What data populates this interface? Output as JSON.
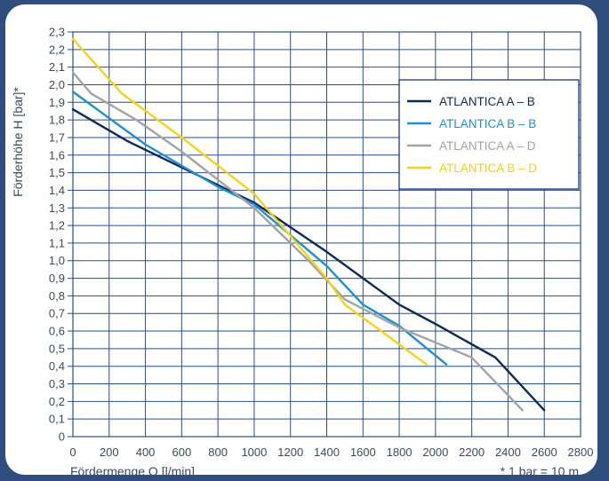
{
  "chart_data": {
    "type": "line",
    "xlabel": "Fördermenge Q [l/min]",
    "ylabel": "Förderhöhe H [bar]*",
    "footnote": "* 1 bar = 10 m",
    "xlim": [
      0,
      2800
    ],
    "ylim": [
      0,
      2.3
    ],
    "x_ticks": [
      "0",
      "200",
      "400",
      "600",
      "800",
      "1000",
      "1200",
      "1400",
      "1600",
      "1800",
      "2000",
      "2200",
      "2400",
      "2600",
      "2800"
    ],
    "y_ticks": [
      "0",
      "0,1",
      "0,2",
      "0,3",
      "0,4",
      "0,5",
      "0,6",
      "0,7",
      "0,8",
      "0,9",
      "1,0",
      "1,1",
      "1,2",
      "1,3",
      "1,4",
      "1,5",
      "1,6",
      "1,7",
      "1,8",
      "1,9",
      "2,0",
      "2,1",
      "2,2",
      "2,3"
    ],
    "grid": true,
    "legend_position": "top-right",
    "series": [
      {
        "name": "ATLANTICA A – B",
        "color": "#0e2a57",
        "points": [
          [
            0,
            1.86
          ],
          [
            300,
            1.68
          ],
          [
            700,
            1.48
          ],
          [
            1000,
            1.33
          ],
          [
            1400,
            1.05
          ],
          [
            1800,
            0.75
          ],
          [
            2000,
            0.64
          ],
          [
            2330,
            0.45
          ],
          [
            2600,
            0.15
          ]
        ]
      },
      {
        "name": "ATLANTICA B – B",
        "color": "#2190d0",
        "points": [
          [
            0,
            1.96
          ],
          [
            400,
            1.66
          ],
          [
            800,
            1.42
          ],
          [
            1000,
            1.32
          ],
          [
            1400,
            0.97
          ],
          [
            1600,
            0.75
          ],
          [
            1800,
            0.63
          ],
          [
            2060,
            0.41
          ]
        ]
      },
      {
        "name": "ATLANTICA A – D",
        "color": "#a3a3a3",
        "points": [
          [
            0,
            2.07
          ],
          [
            100,
            1.95
          ],
          [
            350,
            1.8
          ],
          [
            600,
            1.62
          ],
          [
            900,
            1.38
          ],
          [
            1000,
            1.3
          ],
          [
            1300,
            1.0
          ],
          [
            1500,
            0.78
          ],
          [
            1800,
            0.62
          ],
          [
            2200,
            0.45
          ],
          [
            2480,
            0.15
          ]
        ]
      },
      {
        "name": "ATLANTICA B – D",
        "color": "#f7d21a",
        "points": [
          [
            0,
            2.26
          ],
          [
            270,
            1.95
          ],
          [
            600,
            1.7
          ],
          [
            1000,
            1.38
          ],
          [
            1400,
            0.9
          ],
          [
            1500,
            0.75
          ],
          [
            1700,
            0.6
          ],
          [
            1950,
            0.41
          ]
        ]
      }
    ]
  }
}
